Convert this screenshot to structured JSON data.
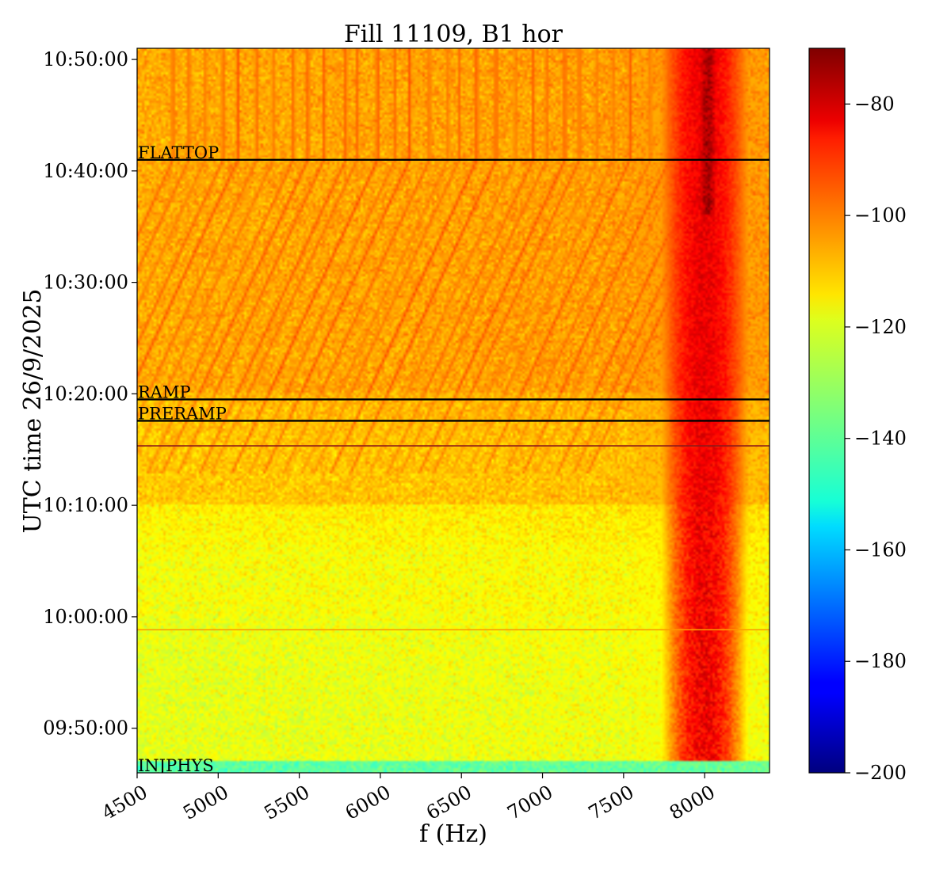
{
  "chart_data": {
    "type": "heatmap",
    "title": "Fill 11109, B1 hor",
    "xlabel": "f (Hz)",
    "ylabel": "UTC time 26/9/2025",
    "xlim": [
      4500,
      8400
    ],
    "ylim": [
      "09:46:00",
      "10:51:00"
    ],
    "x_ticks": [
      {
        "value": 4500,
        "label": "4500"
      },
      {
        "value": 5000,
        "label": "5000"
      },
      {
        "value": 5500,
        "label": "5500"
      },
      {
        "value": 6000,
        "label": "6000"
      },
      {
        "value": 6500,
        "label": "6500"
      },
      {
        "value": 7000,
        "label": "7000"
      },
      {
        "value": 7500,
        "label": "7500"
      },
      {
        "value": 8000,
        "label": "8000"
      }
    ],
    "y_ticks": [
      {
        "value": "09:50:00",
        "label": "09:50:00"
      },
      {
        "value": "10:00:00",
        "label": "10:00:00"
      },
      {
        "value": "10:10:00",
        "label": "10:10:00"
      },
      {
        "value": "10:20:00",
        "label": "10:20:00"
      },
      {
        "value": "10:30:00",
        "label": "10:30:00"
      },
      {
        "value": "10:40:00",
        "label": "10:40:00"
      },
      {
        "value": "10:50:00",
        "label": "10:50:00"
      }
    ],
    "colorbar": {
      "colormap": "jet",
      "range": [
        -200,
        -70
      ],
      "ticks": [
        {
          "value": -80,
          "label": "−80"
        },
        {
          "value": -100,
          "label": "−100"
        },
        {
          "value": -120,
          "label": "−120"
        },
        {
          "value": -140,
          "label": "−140"
        },
        {
          "value": -160,
          "label": "−160"
        },
        {
          "value": -180,
          "label": "−180"
        },
        {
          "value": -200,
          "label": "−200"
        }
      ]
    },
    "events": [
      {
        "label": "FLATTOP",
        "time": "10:41:00",
        "color": "#000000"
      },
      {
        "label": "RAMP",
        "time": "10:19:30",
        "color": "#000000"
      },
      {
        "label": "PRERAMP",
        "time": "10:17:35",
        "color": "#000000"
      },
      {
        "label": "INJPHYS",
        "time": "09:46:00",
        "color": "#000000"
      }
    ],
    "marker_lines": [
      {
        "time": "10:15:20",
        "color": "#8b1a1a"
      },
      {
        "time": "09:58:50",
        "color": "#ff9900"
      }
    ],
    "background_levels": [
      {
        "from": "09:46:00",
        "to": "09:47:00",
        "level": -140
      },
      {
        "from": "09:47:00",
        "to": "10:00:00",
        "level": -122
      },
      {
        "from": "10:00:00",
        "to": "10:10:00",
        "level": -120
      },
      {
        "from": "10:10:00",
        "to": "10:20:00",
        "level": -112
      },
      {
        "from": "10:20:00",
        "to": "10:51:00",
        "level": -108
      }
    ],
    "hotspots": [
      {
        "f_from": 7700,
        "f_to": 8250,
        "t_from": "09:47:00",
        "t_to": "10:51:00",
        "peak_level": -82,
        "peak_f": 8000
      },
      {
        "f_from": 7950,
        "f_to": 8100,
        "t_from": "10:36:00",
        "t_to": "10:51:00",
        "peak_level": -72,
        "peak_f": 8020
      }
    ]
  }
}
